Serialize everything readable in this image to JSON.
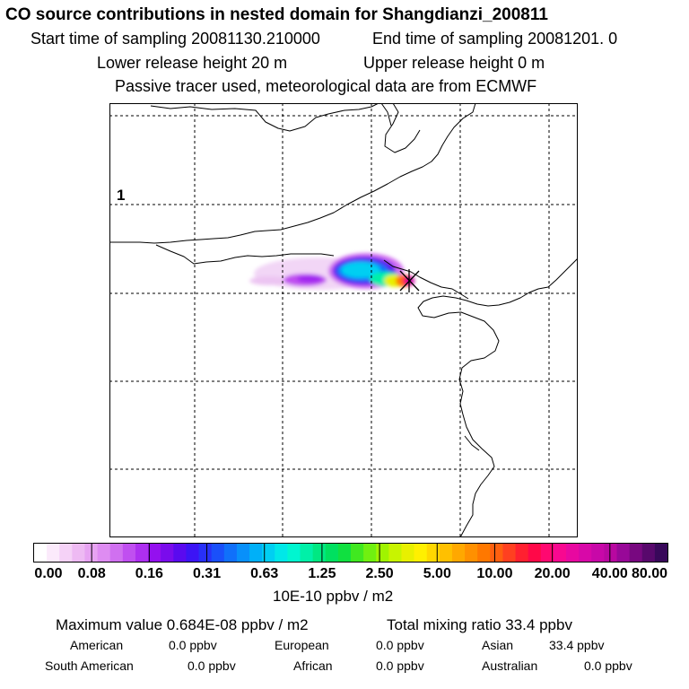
{
  "title": "CO  source contributions in nested domain for Shangdianzi_200811",
  "header": {
    "start_time": "Start time of sampling 20081130.210000",
    "end_time": "End time of sampling 20081201.     0",
    "lower_height": "Lower release height   20 m",
    "upper_height": "Upper release height    0 m",
    "tracer_note": "Passive tracer used, meteorological data are from ECMWF"
  },
  "map": {
    "panel_label": "1",
    "receptor_marker": "receptor-star-icon"
  },
  "colorbar": {
    "ticks": [
      "0.00",
      "0.08",
      "0.16",
      "0.31",
      "0.63",
      "1.25",
      "2.50",
      "5.00",
      "10.00",
      "20.00",
      "40.00",
      "80.00"
    ],
    "units": "10E-10 ppbv / m2",
    "colors": [
      "#ffffff",
      "#fbeafb",
      "#f5d2f7",
      "#eebaf3",
      "#e7a3f2",
      "#de8cf2",
      "#d070f0",
      "#c04ff0",
      "#ad2ff0",
      "#9410ef",
      "#7a0cec",
      "#5a0aef",
      "#3c14f5",
      "#2830f8",
      "#1a50fa",
      "#1070fa",
      "#0890fa",
      "#00b0f8",
      "#00cff2",
      "#00e8e8",
      "#00f6d0",
      "#00f0a8",
      "#00e882",
      "#00e060",
      "#10e040",
      "#40e820",
      "#70f010",
      "#a0f400",
      "#c8f400",
      "#e8f000",
      "#fff000",
      "#ffd800",
      "#ffc000",
      "#ffa800",
      "#ff9000",
      "#ff7800",
      "#ff6010",
      "#ff4020",
      "#ff2030",
      "#ff0848",
      "#ff0870",
      "#f80890",
      "#e808a0",
      "#d808a8",
      "#c808a8",
      "#b808a0",
      "#980898",
      "#780880",
      "#58086c",
      "#38085a"
    ]
  },
  "stats": {
    "max_value": "Maximum value  0.684E-08 ppbv / m2",
    "total_mixing": "Total mixing ratio       33.4 ppbv",
    "rows": [
      {
        "label": "American",
        "value": "0.0 ppbv"
      },
      {
        "label": "European",
        "value": "0.0 ppbv"
      },
      {
        "label": "Asian",
        "value": "33.4 ppbv"
      },
      {
        "label": "South American",
        "value": "0.0 ppbv"
      },
      {
        "label": "African",
        "value": "0.0 ppbv"
      },
      {
        "label": "Australian",
        "value": "0.0 ppbv"
      }
    ]
  }
}
